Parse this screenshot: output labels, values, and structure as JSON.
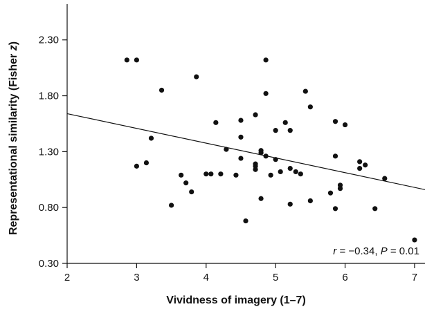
{
  "chart_data": {
    "type": "scatter",
    "title": "",
    "xlabel": "Vividness of imagery (1–7)",
    "ylabel_main": "Representational similarity (Fisher ",
    "ylabel_italic": "z",
    "ylabel_close": ")",
    "xlim": [
      2,
      7.15
    ],
    "ylim": [
      0.3,
      2.62
    ],
    "xticks": [
      "2",
      "3",
      "4",
      "5",
      "6",
      "7"
    ],
    "yticks": [
      "0.30",
      "0.80",
      "1.30",
      "1.80",
      "2.30"
    ],
    "grid": false,
    "annotation": {
      "r_symbol": "r",
      "r_text": " = −0.34, ",
      "p_symbol": "P",
      "p_text": " = 0.01"
    },
    "fit_line": {
      "x": [
        2,
        7.15
      ],
      "y": [
        1.64,
        0.96
      ]
    },
    "points": [
      {
        "x": 2.86,
        "y": 2.12
      },
      {
        "x": 3.0,
        "y": 2.12
      },
      {
        "x": 3.0,
        "y": 1.17
      },
      {
        "x": 3.14,
        "y": 1.2
      },
      {
        "x": 3.21,
        "y": 1.42
      },
      {
        "x": 3.36,
        "y": 1.85
      },
      {
        "x": 3.5,
        "y": 0.82
      },
      {
        "x": 3.64,
        "y": 1.09
      },
      {
        "x": 3.71,
        "y": 1.02
      },
      {
        "x": 3.79,
        "y": 0.94
      },
      {
        "x": 3.86,
        "y": 1.97
      },
      {
        "x": 4.0,
        "y": 1.1
      },
      {
        "x": 4.07,
        "y": 1.1
      },
      {
        "x": 4.14,
        "y": 1.56
      },
      {
        "x": 4.21,
        "y": 1.1
      },
      {
        "x": 4.29,
        "y": 1.32
      },
      {
        "x": 4.43,
        "y": 1.09
      },
      {
        "x": 4.5,
        "y": 1.58
      },
      {
        "x": 4.5,
        "y": 1.43
      },
      {
        "x": 4.5,
        "y": 1.24
      },
      {
        "x": 4.57,
        "y": 0.68
      },
      {
        "x": 4.71,
        "y": 1.63
      },
      {
        "x": 4.71,
        "y": 1.19
      },
      {
        "x": 4.71,
        "y": 1.17
      },
      {
        "x": 4.71,
        "y": 1.14
      },
      {
        "x": 4.79,
        "y": 1.31
      },
      {
        "x": 4.79,
        "y": 1.29
      },
      {
        "x": 4.79,
        "y": 0.88
      },
      {
        "x": 4.86,
        "y": 2.12
      },
      {
        "x": 4.86,
        "y": 1.82
      },
      {
        "x": 4.86,
        "y": 1.26
      },
      {
        "x": 4.93,
        "y": 1.09
      },
      {
        "x": 5.0,
        "y": 1.49
      },
      {
        "x": 5.0,
        "y": 1.23
      },
      {
        "x": 5.07,
        "y": 1.12
      },
      {
        "x": 5.14,
        "y": 1.56
      },
      {
        "x": 5.21,
        "y": 1.49
      },
      {
        "x": 5.21,
        "y": 1.15
      },
      {
        "x": 5.21,
        "y": 0.83
      },
      {
        "x": 5.29,
        "y": 1.12
      },
      {
        "x": 5.36,
        "y": 1.1
      },
      {
        "x": 5.43,
        "y": 1.84
      },
      {
        "x": 5.5,
        "y": 1.7
      },
      {
        "x": 5.5,
        "y": 0.86
      },
      {
        "x": 5.79,
        "y": 0.93
      },
      {
        "x": 5.86,
        "y": 1.57
      },
      {
        "x": 5.86,
        "y": 1.26
      },
      {
        "x": 5.86,
        "y": 0.79
      },
      {
        "x": 5.93,
        "y": 1.0
      },
      {
        "x": 5.93,
        "y": 0.97
      },
      {
        "x": 6.0,
        "y": 1.54
      },
      {
        "x": 6.21,
        "y": 1.21
      },
      {
        "x": 6.21,
        "y": 1.15
      },
      {
        "x": 6.29,
        "y": 1.18
      },
      {
        "x": 6.43,
        "y": 0.79
      },
      {
        "x": 6.57,
        "y": 1.06
      },
      {
        "x": 7.0,
        "y": 0.51
      }
    ]
  }
}
